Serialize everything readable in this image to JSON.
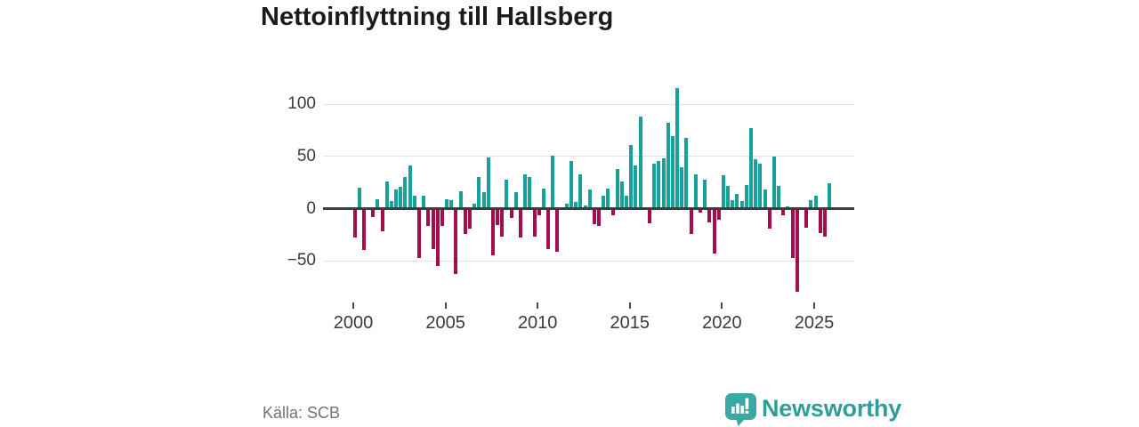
{
  "title": "Nettoinflyttning till Hallsberg",
  "source": "Källa: SCB",
  "branding": {
    "name": "Newsworthy"
  },
  "colors": {
    "positive": "#16a29b",
    "negative": "#a40d4b",
    "grid": "#e3e3e3",
    "zero_line": "#3c3c3c",
    "axis_text": "#3a3a3a",
    "title_text": "#1b1b1b",
    "source_text": "#6f737b",
    "logo_icon": "#3aa8a3",
    "logo_text": "#2f9e99"
  },
  "chart_data": {
    "type": "bar",
    "title": "Nettoinflyttning till Hallsberg",
    "frequency": "quarterly",
    "x_start": "2000-Q1",
    "x_end": "2025-Q4",
    "x_tick_labels": [
      "2000",
      "2005",
      "2010",
      "2015",
      "2020",
      "2025"
    ],
    "y_tick_labels": [
      "100",
      "50",
      "0",
      "−50"
    ],
    "y_tick_values": [
      100,
      50,
      0,
      -50
    ],
    "ylim": [
      -90,
      120
    ],
    "grid": true,
    "legend": false,
    "series": [
      {
        "name": "Nettoinflyttning",
        "values": [
          -28,
          20,
          -40,
          0,
          -8,
          9,
          -22,
          26,
          7,
          18,
          21,
          30,
          41,
          12,
          -47,
          12,
          -17,
          -39,
          -55,
          -17,
          9,
          8,
          -63,
          17,
          -24,
          -19,
          5,
          30,
          16,
          49,
          -45,
          -16,
          -27,
          28,
          -9,
          16,
          -28,
          33,
          30,
          -27,
          -6,
          19,
          -39,
          51,
          -41,
          0,
          5,
          46,
          6,
          33,
          3,
          18,
          -15,
          -17,
          12,
          19,
          -6,
          38,
          26,
          12,
          61,
          41,
          88,
          0,
          -14,
          43,
          46,
          48,
          82,
          69,
          115,
          40,
          68,
          -24,
          33,
          -4,
          28,
          -13,
          -43,
          -11,
          32,
          22,
          8,
          14,
          7,
          23,
          77,
          47,
          43,
          18,
          -19,
          50,
          22,
          -6,
          2,
          -47,
          -80,
          1,
          -18,
          8,
          12,
          -23,
          -27,
          24
        ]
      }
    ]
  }
}
